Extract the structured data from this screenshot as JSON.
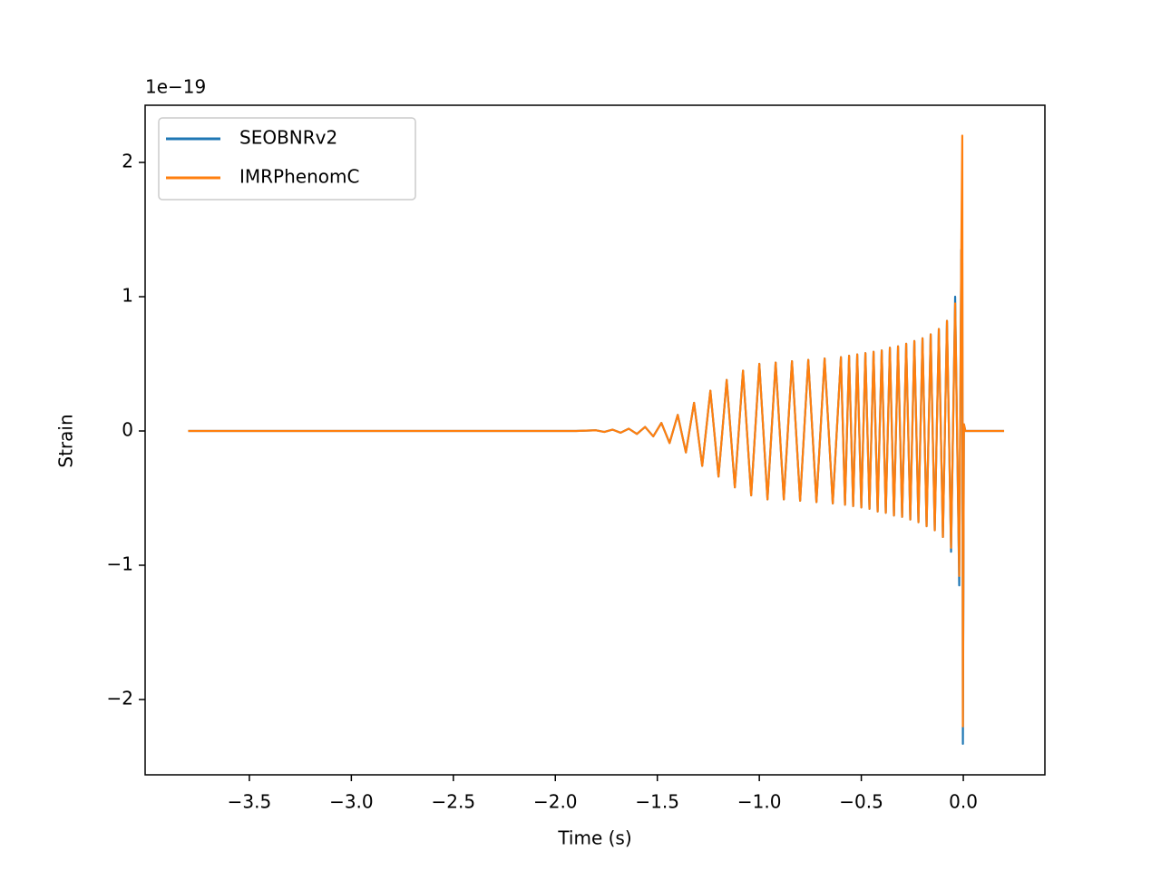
{
  "chart_data": {
    "type": "line",
    "xlabel": "Time (s)",
    "ylabel": "Strain",
    "y_offset_label": "1e−19",
    "x": [
      -3.8,
      -1.9,
      -1.8,
      -1.76,
      -1.72,
      -1.68,
      -1.64,
      -1.6,
      -1.56,
      -1.52,
      -1.48,
      -1.44,
      -1.4,
      -1.36,
      -1.32,
      -1.28,
      -1.24,
      -1.2,
      -1.16,
      -1.12,
      -1.08,
      -1.04,
      -1.0,
      -0.96,
      -0.92,
      -0.88,
      -0.84,
      -0.8,
      -0.76,
      -0.72,
      -0.68,
      -0.64,
      -0.6,
      -0.58,
      -0.56,
      -0.54,
      -0.52,
      -0.5,
      -0.48,
      -0.46,
      -0.44,
      -0.42,
      -0.4,
      -0.38,
      -0.36,
      -0.34,
      -0.32,
      -0.3,
      -0.28,
      -0.26,
      -0.24,
      -0.22,
      -0.2,
      -0.18,
      -0.16,
      -0.14,
      -0.12,
      -0.1,
      -0.08,
      -0.06,
      -0.04,
      -0.02,
      -0.01,
      -0.005,
      -0.002,
      0.003,
      0.01,
      0.2
    ],
    "series": [
      {
        "name": "SEOBNRv2",
        "color": "#1f77b4",
        "values": [
          0,
          0,
          0.005,
          -0.007,
          0.01,
          -0.013,
          0.017,
          -0.022,
          0.03,
          -0.04,
          0.06,
          -0.09,
          0.12,
          -0.16,
          0.21,
          -0.26,
          0.3,
          -0.34,
          0.38,
          -0.42,
          0.45,
          -0.48,
          0.5,
          -0.51,
          0.51,
          -0.51,
          0.52,
          -0.52,
          0.53,
          -0.53,
          0.54,
          -0.54,
          0.55,
          -0.55,
          0.56,
          -0.56,
          0.57,
          -0.57,
          0.58,
          -0.58,
          0.59,
          -0.6,
          0.6,
          -0.61,
          0.62,
          -0.63,
          0.63,
          -0.64,
          0.65,
          -0.66,
          0.67,
          -0.68,
          0.69,
          -0.71,
          0.72,
          -0.74,
          0.76,
          -0.79,
          0.82,
          -0.9,
          1.0,
          -1.15,
          1.35,
          1.25,
          -2.33,
          0.05,
          0,
          0
        ]
      },
      {
        "name": "IMRPhenomC",
        "color": "#ff7f0e",
        "values": [
          0,
          0,
          0.005,
          -0.007,
          0.01,
          -0.013,
          0.017,
          -0.022,
          0.03,
          -0.04,
          0.06,
          -0.09,
          0.12,
          -0.16,
          0.21,
          -0.26,
          0.3,
          -0.34,
          0.38,
          -0.42,
          0.45,
          -0.48,
          0.5,
          -0.51,
          0.51,
          -0.51,
          0.52,
          -0.52,
          0.53,
          -0.53,
          0.54,
          -0.54,
          0.55,
          -0.55,
          0.56,
          -0.56,
          0.57,
          -0.57,
          0.58,
          -0.58,
          0.59,
          -0.6,
          0.6,
          -0.61,
          0.62,
          -0.63,
          0.63,
          -0.64,
          0.65,
          -0.66,
          0.67,
          -0.68,
          0.69,
          -0.71,
          0.72,
          -0.74,
          0.76,
          -0.79,
          0.82,
          -0.87,
          0.95,
          -1.08,
          1.3,
          2.2,
          -2.2,
          0.05,
          0,
          0
        ]
      }
    ],
    "xlim": [
      -4.011,
      0.4
    ],
    "ylim": [
      -2.561,
      2.426
    ],
    "xticks": [
      {
        "value": -3.5,
        "label": "−3.5"
      },
      {
        "value": -3.0,
        "label": "−3.0"
      },
      {
        "value": -2.5,
        "label": "−2.5"
      },
      {
        "value": -2.0,
        "label": "−2.0"
      },
      {
        "value": -1.5,
        "label": "−1.5"
      },
      {
        "value": -1.0,
        "label": "−1.0"
      },
      {
        "value": -0.5,
        "label": "−0.5"
      },
      {
        "value": 0,
        "label": "0.0"
      }
    ],
    "yticks": [
      {
        "value": -2,
        "label": "−2"
      },
      {
        "value": -1,
        "label": "−1"
      },
      0,
      1,
      2
    ],
    "grid": false,
    "legend": "upper left"
  }
}
